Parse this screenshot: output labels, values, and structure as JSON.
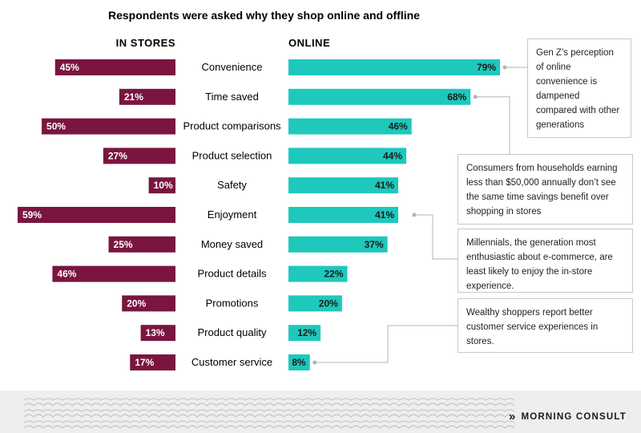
{
  "colors": {
    "stores": "#7a1540",
    "online": "#1ec8bc",
    "connector": "#b4b4b4"
  },
  "chart_data": {
    "type": "bar",
    "title": "Respondents were asked why they shop online and offline",
    "categories": [
      "Convenience",
      "Time saved",
      "Product comparisons",
      "Product selection",
      "Safety",
      "Enjoyment",
      "Money saved",
      "Product details",
      "Promotions",
      "Product quality",
      "Customer service"
    ],
    "series": [
      {
        "name": "IN STORES",
        "values": [
          45,
          21,
          50,
          27,
          10,
          59,
          25,
          46,
          20,
          13,
          17
        ]
      },
      {
        "name": "ONLINE",
        "values": [
          79,
          68,
          46,
          44,
          41,
          41,
          37,
          22,
          20,
          12,
          8
        ]
      }
    ],
    "value_suffix": "%",
    "annotations": [
      {
        "text": "Gen Z’s perception of online convenience is dampened compared with other generations",
        "category": "Convenience"
      },
      {
        "text": "Consumers from households earning less than $50,000 annually don’t see the same time savings benefit over shopping in stores",
        "category": "Time saved"
      },
      {
        "text": "Millennials, the generation most enthusiastic about e-commerce, are least likely to enjoy the in-store experience.",
        "category": "Enjoyment"
      },
      {
        "text": "Wealthy shoppers report better customer service experiences in stores.",
        "category": "Customer service"
      }
    ]
  },
  "footer": {
    "brand": "MORNING CONSULT",
    "brand_mark": "»"
  }
}
